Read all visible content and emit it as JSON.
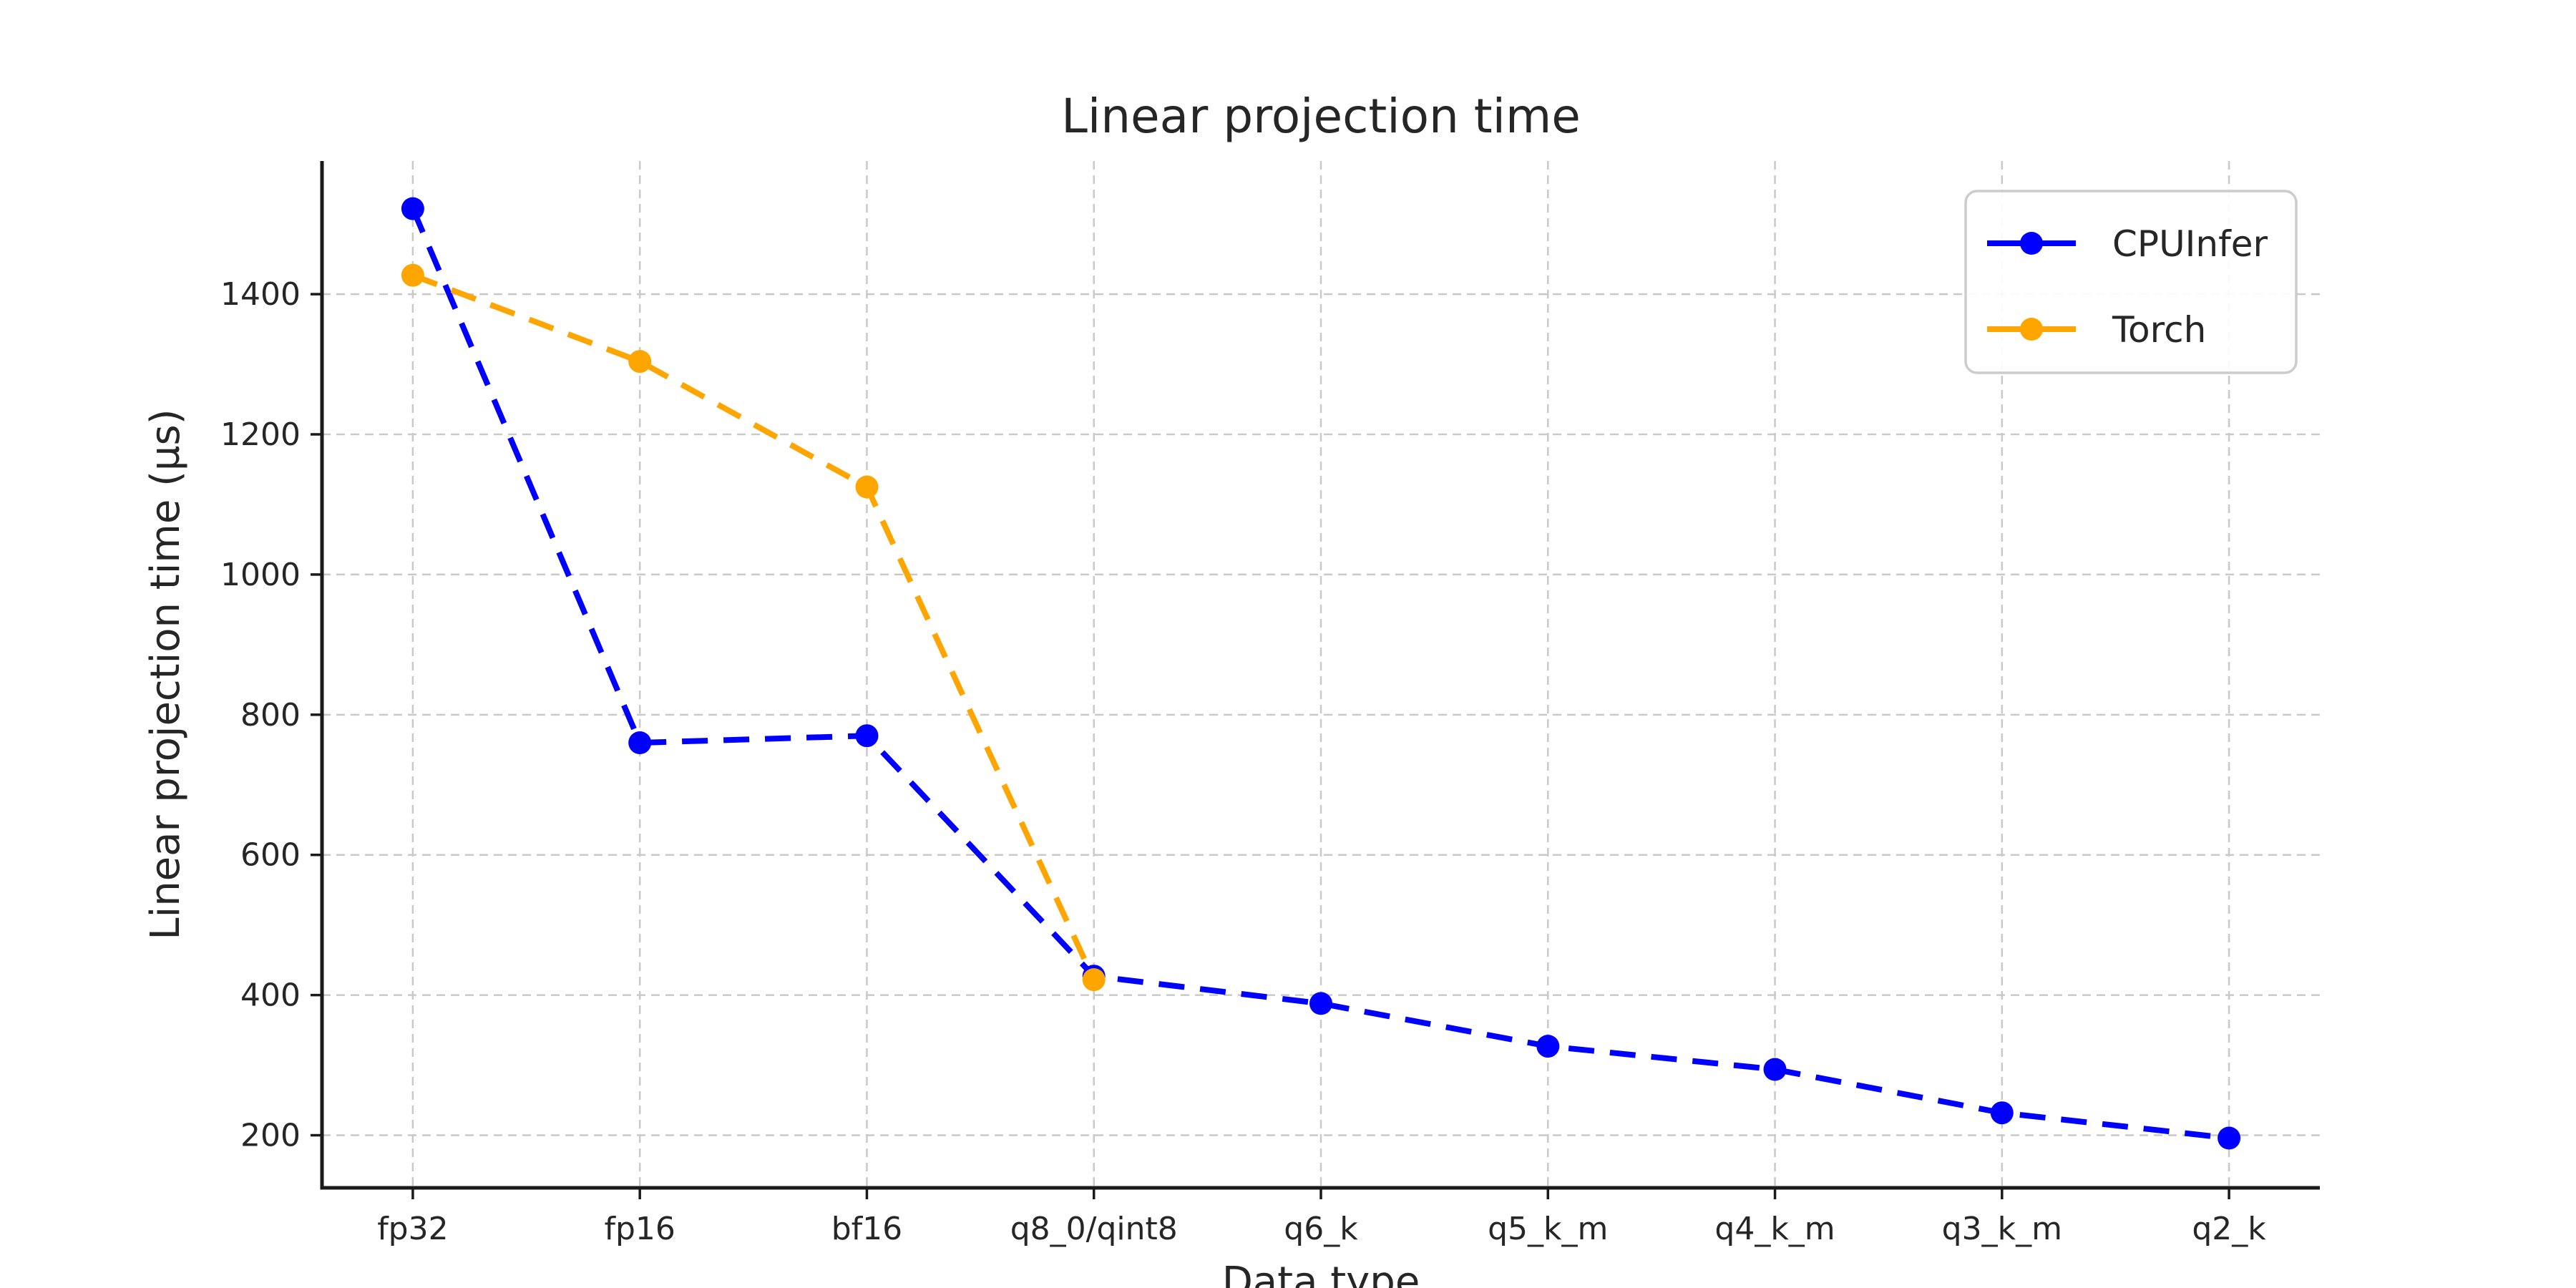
{
  "chart_data": {
    "type": "line",
    "title": "Linear projection time",
    "xlabel": "Data type",
    "ylabel": "Linear projection time (µs)",
    "categories": [
      "fp32",
      "fp16",
      "bf16",
      "q8_0/qint8",
      "q6_k",
      "q5_k_m",
      "q4_k_m",
      "q3_k_m",
      "q2_k"
    ],
    "series": [
      {
        "name": "CPUInfer",
        "color": "#0000ff",
        "values": [
          1522,
          760,
          770,
          427,
          388,
          327,
          294,
          232,
          196
        ]
      },
      {
        "name": "Torch",
        "color": "#ffa500",
        "values": [
          1427,
          1304,
          1125,
          422,
          null,
          null,
          null,
          null,
          null
        ]
      }
    ],
    "yticks": [
      200,
      400,
      600,
      800,
      1000,
      1200,
      1400
    ],
    "ylim": [
      125,
      1590
    ],
    "grid": true,
    "grid_on": "both",
    "line_style": "dashed",
    "marker": "circle",
    "legend_position": "upper right",
    "background_color": "#ffffff",
    "text_color": "#262626",
    "spine_color": "#1a1a1a",
    "grid_color": "#c9c9c9",
    "legend_border_color": "#cccccc"
  }
}
